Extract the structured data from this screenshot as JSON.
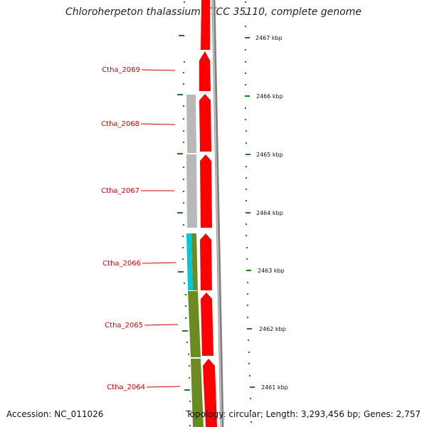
{
  "title": "Chloroherpeton thalassium ATCC 35110, complete genome",
  "accession": "Accession: NC_011026",
  "summary": "Topology: circular; Length: 3,293,456 bp; Genes: 2,757",
  "colors": {
    "gene_arrow": "#ff0000",
    "backbone": "#808080",
    "tick": "#1a7a1a",
    "label": "#cc0000",
    "homolog_gray": "#b8b8b8",
    "homolog_cyan": "#00c8d8",
    "homolog_olive": "#6b8a22"
  },
  "kbp_labels": [
    "2467 kbp",
    "2466 kbp",
    "2465 kbp",
    "2464 kbp",
    "2463 kbp",
    "2462 kbp",
    "2461 kbp"
  ],
  "genes": [
    "Ctha_2069",
    "Ctha_2068",
    "Ctha_2067",
    "Ctha_2066",
    "Ctha_2065",
    "Ctha_2064"
  ]
}
